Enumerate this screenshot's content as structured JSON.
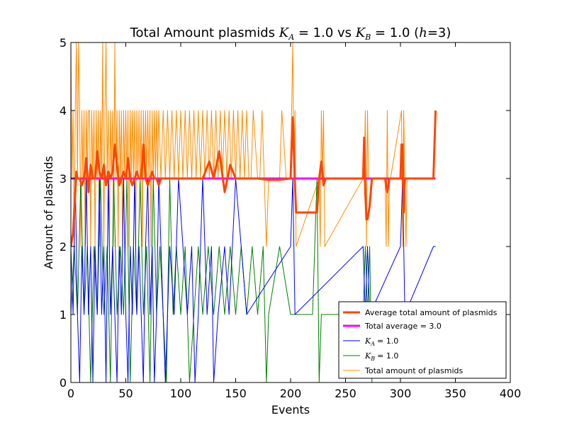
{
  "chart_data": {
    "type": "line",
    "title": {
      "prefix": "Total Amount plasmids ",
      "ka_var": "K",
      "ka_sub": "A",
      "ka_val": " = 1.0 vs ",
      "kb_var": "K",
      "kb_sub": "B",
      "kb_val": " = 1.0 (",
      "h_var": "h",
      "h_val": "=3)"
    },
    "xlabel": "Events",
    "ylabel": "Amount of plasmids",
    "xlim": [
      0,
      400
    ],
    "ylim": [
      0,
      5
    ],
    "xticks": [
      "0",
      "50",
      "100",
      "150",
      "200",
      "250",
      "300",
      "350",
      "400"
    ],
    "yticks": [
      "0",
      "1",
      "2",
      "3",
      "4",
      "5"
    ],
    "grid": false,
    "legend_position": "lower-right",
    "legend": [
      {
        "label": "Average total amount of plasmids",
        "color": "#ff4500"
      },
      {
        "label": "Total average = 3.0",
        "color": "#ff00ff"
      },
      {
        "label": "= 1.0",
        "var": "K",
        "sub": "A",
        "color": "#0000ff"
      },
      {
        "label": "= 1.0",
        "var": "K",
        "sub": "B",
        "color": "#008000"
      },
      {
        "label": "Total amount of plasmids",
        "color": "#ff8c00"
      }
    ],
    "series": [
      {
        "name": "Total amount of plasmids",
        "color": "#ff8c00",
        "width": 1,
        "x": [
          0,
          1,
          2,
          3,
          4,
          5,
          6,
          7,
          8,
          9,
          10,
          11,
          12,
          13,
          14,
          15,
          16,
          17,
          18,
          19,
          20,
          21,
          22,
          23,
          24,
          25,
          26,
          27,
          28,
          29,
          30,
          31,
          32,
          33,
          34,
          35,
          36,
          37,
          38,
          39,
          40,
          41,
          42,
          43,
          44,
          45,
          46,
          47,
          48,
          49,
          50,
          51,
          52,
          53,
          54,
          55,
          56,
          57,
          58,
          59,
          60,
          61,
          62,
          63,
          64,
          65,
          66,
          67,
          68,
          69,
          70,
          71,
          72,
          73,
          74,
          75,
          76,
          77,
          78,
          79,
          80,
          82,
          84,
          86,
          88,
          90,
          92,
          94,
          96,
          98,
          100,
          102,
          104,
          106,
          108,
          110,
          112,
          114,
          116,
          118,
          120,
          122,
          124,
          126,
          128,
          130,
          132,
          134,
          136,
          138,
          140,
          142,
          144,
          146,
          148,
          150,
          152,
          154,
          156,
          158,
          160,
          162,
          164,
          166,
          170,
          172,
          174,
          178,
          180,
          190,
          192,
          196,
          200,
          201,
          202,
          203,
          204,
          205,
          226,
          227,
          228,
          229,
          230,
          231,
          266,
          267,
          268,
          269,
          270,
          271,
          286,
          287,
          288,
          289,
          290,
          291,
          301,
          302,
          303,
          304,
          305,
          306
        ],
        "y": [
          5,
          3,
          4,
          2,
          4,
          5,
          3,
          5,
          4,
          2,
          4,
          3,
          4,
          2,
          4,
          3,
          4,
          4,
          2,
          4,
          3,
          4,
          2,
          4,
          3,
          4,
          2,
          4,
          3,
          5,
          2,
          4,
          5,
          3,
          4,
          2,
          4,
          3,
          4,
          2,
          5,
          3,
          4,
          2,
          4,
          3,
          4,
          2,
          4,
          3,
          4,
          3,
          4,
          2,
          4,
          3,
          4,
          3,
          4,
          2,
          4,
          3,
          4,
          3,
          4,
          2,
          4,
          3,
          4,
          3,
          4,
          3,
          4,
          2,
          4,
          3,
          4,
          3,
          4,
          3,
          4,
          3,
          4,
          3,
          4,
          3,
          4,
          3,
          4,
          3,
          4,
          3,
          4,
          3,
          4,
          3,
          4,
          3,
          4,
          3,
          4,
          3,
          4,
          3,
          4,
          3,
          4,
          3,
          4,
          3,
          4,
          3,
          4,
          3,
          4,
          3,
          4,
          3,
          4,
          3,
          4,
          3,
          3,
          4,
          3,
          3,
          4,
          2,
          3,
          3,
          4,
          3,
          3,
          4,
          5,
          3,
          4,
          2,
          3,
          2,
          4,
          3,
          4,
          2,
          3,
          3,
          4,
          2,
          4,
          3,
          3,
          2,
          4,
          2,
          3,
          3,
          4,
          2,
          4,
          3,
          2,
          3
        ]
      },
      {
        "name": "K_B = 1.0",
        "color": "#008000",
        "width": 1,
        "x": [
          0,
          3,
          6,
          9,
          12,
          15,
          18,
          21,
          24,
          27,
          30,
          33,
          36,
          39,
          42,
          45,
          48,
          51,
          54,
          57,
          60,
          63,
          66,
          69,
          72,
          75,
          78,
          81,
          84,
          87,
          90,
          93,
          96,
          100,
          104,
          108,
          112,
          116,
          120,
          125,
          130,
          135,
          140,
          145,
          150,
          155,
          160,
          165,
          170,
          175,
          178,
          180,
          190,
          200,
          210,
          220,
          224,
          226,
          228,
          230,
          266,
          268,
          270,
          272,
          274,
          276,
          290,
          300,
          305
        ],
        "y": [
          1,
          2,
          1,
          3,
          1,
          2,
          0,
          2,
          1,
          3,
          1,
          2,
          0,
          3,
          1,
          2,
          1,
          3,
          0,
          2,
          1,
          3,
          1,
          2,
          0,
          3,
          1,
          2,
          1,
          0,
          3,
          1,
          2,
          1,
          2,
          0,
          1,
          2,
          1,
          2,
          1,
          2,
          1,
          2,
          1,
          2,
          1,
          2,
          1,
          2,
          0,
          1,
          2,
          1,
          1,
          1,
          3,
          0,
          1,
          1,
          1,
          2,
          1,
          2,
          0,
          1,
          1,
          1,
          1
        ]
      },
      {
        "name": "K_A = 1.0",
        "color": "#0000ff",
        "width": 1,
        "x": [
          0,
          2,
          4,
          6,
          8,
          10,
          12,
          14,
          16,
          18,
          20,
          22,
          24,
          26,
          28,
          30,
          32,
          34,
          36,
          38,
          40,
          42,
          44,
          46,
          48,
          50,
          52,
          54,
          56,
          58,
          60,
          62,
          64,
          66,
          68,
          70,
          72,
          74,
          76,
          78,
          80,
          82,
          84,
          86,
          88,
          90,
          94,
          98,
          102,
          106,
          110,
          113,
          116,
          120,
          124,
          128,
          130,
          134,
          140,
          144,
          150,
          155,
          160,
          200,
          202,
          204,
          266,
          268,
          270,
          272,
          300,
          302,
          304,
          330,
          332
        ],
        "y": [
          2,
          1,
          3,
          1,
          0,
          2,
          1,
          3,
          1,
          2,
          0,
          2,
          1,
          3,
          1,
          2,
          0,
          3,
          1,
          2,
          1,
          0,
          2,
          1,
          3,
          1,
          0,
          2,
          1,
          3,
          1,
          2,
          1,
          0,
          2,
          3,
          1,
          2,
          0,
          1,
          3,
          2,
          1,
          0,
          1,
          2,
          1,
          3,
          2,
          1,
          2,
          0,
          1,
          3,
          1,
          2,
          0,
          1,
          2,
          1,
          3,
          2,
          1,
          2,
          3,
          1,
          2,
          1,
          2,
          1,
          2,
          3,
          1,
          2,
          2
        ]
      },
      {
        "name": "Total average = 3.0",
        "color": "#ff00ff",
        "width": 3,
        "x": [
          0,
          332
        ],
        "y": [
          3.0,
          3.0
        ]
      },
      {
        "name": "Average total amount of plasmids",
        "color": "#ff4500",
        "width": 3,
        "x": [
          0,
          2,
          4,
          5,
          6,
          8,
          10,
          12,
          14,
          16,
          18,
          20,
          22,
          24,
          26,
          28,
          30,
          32,
          34,
          36,
          38,
          40,
          42,
          44,
          46,
          48,
          50,
          52,
          54,
          56,
          58,
          60,
          62,
          64,
          66,
          68,
          70,
          72,
          74,
          76,
          78,
          80,
          82,
          85,
          90,
          95,
          100,
          110,
          120,
          126,
          130,
          135,
          140,
          145,
          150,
          155,
          160,
          170,
          180,
          190,
          200,
          201,
          202,
          203,
          204,
          205,
          206,
          210,
          220,
          224,
          226,
          228,
          230,
          232,
          260,
          266,
          267,
          268,
          269,
          270,
          272,
          274,
          276,
          286,
          288,
          290,
          292,
          300,
          301,
          302,
          303,
          304,
          305,
          306,
          330,
          332
        ],
        "y": [
          2.0,
          2.2,
          2.8,
          3.1,
          3.0,
          3.0,
          2.9,
          3.0,
          3.3,
          2.8,
          3.2,
          3.0,
          3.0,
          3.4,
          3.1,
          3.0,
          3.2,
          2.9,
          3.1,
          3.0,
          3.1,
          3.5,
          3.2,
          2.9,
          3.0,
          3.1,
          3.0,
          3.3,
          3.0,
          2.9,
          3.0,
          3.1,
          3.0,
          3.0,
          3.5,
          3.0,
          2.9,
          3.0,
          3.1,
          3.0,
          3.0,
          2.9,
          3.0,
          3.0,
          3.0,
          3.0,
          3.0,
          3.0,
          3.0,
          3.25,
          3.0,
          3.4,
          2.8,
          3.2,
          3.0,
          3.0,
          3.0,
          3.0,
          2.98,
          2.98,
          3.0,
          3.5,
          3.9,
          3.4,
          2.9,
          2.5,
          2.5,
          2.5,
          2.5,
          2.5,
          3.0,
          3.25,
          2.9,
          3.0,
          3.0,
          3.0,
          3.6,
          2.8,
          2.4,
          2.4,
          2.6,
          3.0,
          3.0,
          3.0,
          2.8,
          3.0,
          3.0,
          3.0,
          3.5,
          3.5,
          2.5,
          3.0,
          3.0,
          3.0,
          3.0,
          4.0
        ]
      }
    ]
  }
}
